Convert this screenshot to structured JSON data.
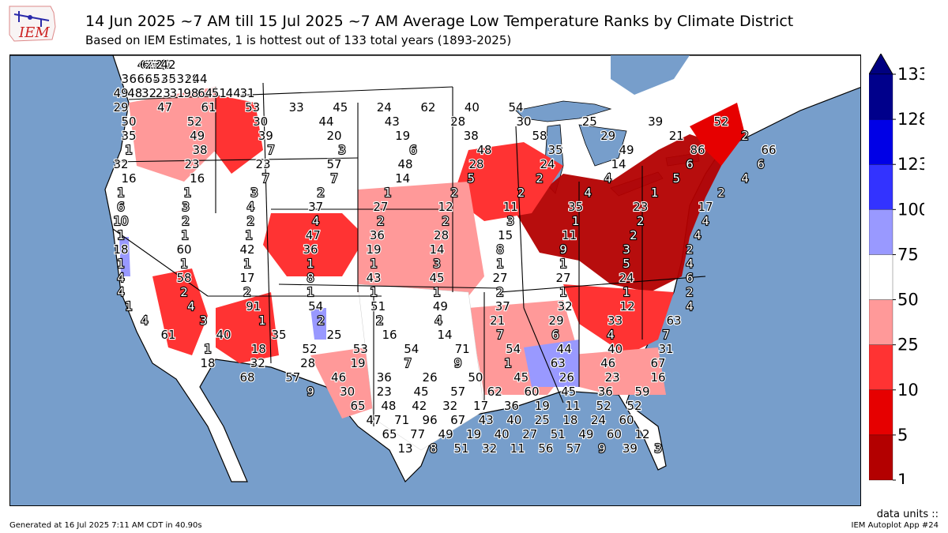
{
  "header": {
    "logo_text": "IEM",
    "title": "14 Jun 2025 ~7 AM till 15 Jul 2025 ~7 AM Average Low Temperature Ranks by Climate District",
    "subtitle": "Based on IEM Estimates, 1 is hottest out of 133 total years (1893-2025)"
  },
  "colors": {
    "ocean": "#779ecb",
    "land_outside": "#ffffff",
    "bins": [
      "#b30000",
      "#e60000",
      "#ff3333",
      "#ff9999",
      "#ffffff",
      "#9999ff",
      "#3333ff",
      "#0000e6",
      "#00008b"
    ]
  },
  "colorbar": {
    "ticks": [
      "1",
      "5",
      "10",
      "25",
      "50",
      "75",
      "100",
      "123",
      "128",
      "133"
    ],
    "extend_arrow_color": "#000080"
  },
  "footer": {
    "generated": "Generated at 16 Jul 2025 7:11 AM CDT in 40.90s",
    "units_label": "data units ::",
    "app": "IEM Autoplot App #24"
  },
  "map_values": [
    44,
    65,
    64,
    28,
    24,
    34,
    34,
    22,
    9,
    42,
    30,
    66,
    63,
    64,
    52,
    38,
    53,
    31,
    29,
    44,
    49,
    48,
    32,
    23,
    31,
    98,
    64,
    51,
    44,
    31,
    29,
    47,
    61,
    53,
    33,
    45,
    24,
    62,
    40,
    54,
    50,
    52,
    30,
    44,
    43,
    28,
    30,
    25,
    39,
    52,
    35,
    49,
    39,
    20,
    19,
    38,
    58,
    29,
    21,
    2,
    1,
    38,
    7,
    3,
    6,
    48,
    35,
    49,
    86,
    66,
    32,
    23,
    23,
    57,
    48,
    28,
    24,
    14,
    6,
    6,
    16,
    16,
    7,
    7,
    14,
    5,
    2,
    4,
    5,
    4,
    1,
    1,
    3,
    2,
    1,
    2,
    2,
    4,
    1,
    2,
    6,
    3,
    4,
    37,
    27,
    12,
    11,
    35,
    23,
    17,
    10,
    2,
    2,
    4,
    2,
    2,
    3,
    1,
    2,
    4,
    1,
    1,
    1,
    47,
    36,
    28,
    15,
    11,
    2,
    4,
    18,
    60,
    42,
    36,
    19,
    14,
    8,
    9,
    3,
    2,
    1,
    1,
    1,
    1,
    1,
    3,
    1,
    1,
    5,
    4,
    4,
    58,
    17,
    8,
    43,
    45,
    27,
    27,
    24,
    6,
    4,
    2,
    2,
    1,
    1,
    1,
    2,
    1,
    1,
    2,
    1,
    4,
    91,
    54,
    51,
    49,
    37,
    32,
    12,
    4,
    4,
    3,
    1,
    2,
    2,
    4,
    21,
    29,
    33,
    63,
    61,
    40,
    35,
    25,
    16,
    14,
    7,
    6,
    4,
    7,
    1,
    18,
    52,
    53,
    54,
    71,
    54,
    44,
    40,
    31,
    18,
    32,
    28,
    19,
    7,
    9,
    1,
    63,
    46,
    67,
    68,
    57,
    46,
    36,
    26,
    50,
    45,
    26,
    23,
    16,
    9,
    30,
    23,
    45,
    57,
    62,
    60,
    45,
    36,
    59,
    65,
    48,
    42,
    32,
    17,
    36,
    19,
    11,
    52,
    52,
    47,
    71,
    96,
    67,
    43,
    40,
    25,
    18,
    24,
    60,
    65,
    77,
    49,
    19,
    40,
    27,
    51,
    49,
    60,
    12,
    13,
    8,
    51,
    32,
    11,
    56,
    57,
    9,
    39,
    3
  ]
}
